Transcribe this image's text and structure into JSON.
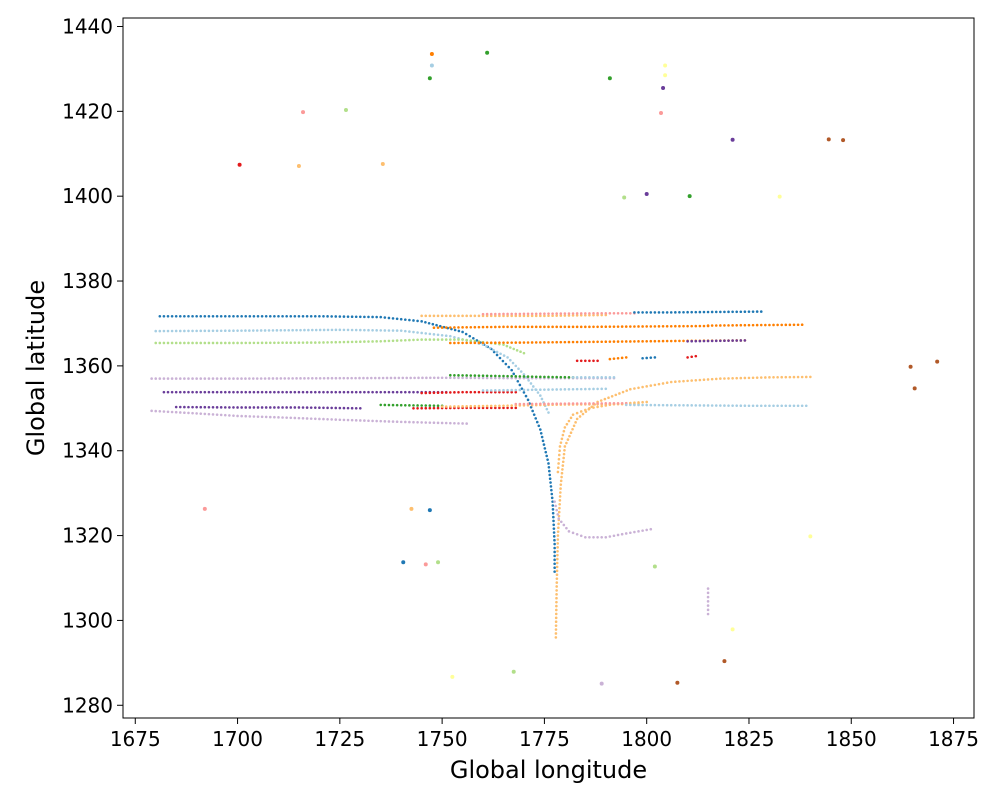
{
  "chart_data": {
    "type": "scatter",
    "title": "",
    "xlabel": "Global longitude",
    "ylabel": "Global latitude",
    "xlim": [
      1672,
      1880
    ],
    "ylim": [
      1277,
      1442
    ],
    "xticks": [
      1675,
      1700,
      1725,
      1750,
      1775,
      1800,
      1825,
      1850,
      1875
    ],
    "yticks": [
      1280,
      1300,
      1320,
      1340,
      1360,
      1380,
      1400,
      1420,
      1440
    ],
    "grid": false,
    "legend": "none",
    "palette": [
      "#a6cee3",
      "#1f78b4",
      "#b2df8a",
      "#33a02c",
      "#fb9a99",
      "#e31a1c",
      "#fdbf6f",
      "#ff7f00",
      "#cab2d6",
      "#6a3d9a",
      "#ffff99",
      "#b15928"
    ],
    "tracks": [
      {
        "color": "#1f78b4",
        "x": [
          1681,
          1700,
          1720,
          1735,
          1745,
          1755,
          1762,
          1767,
          1771,
          1774,
          1776,
          1777,
          1777.5,
          1777.5
        ],
        "y": [
          1371.7,
          1371.7,
          1371.7,
          1371.5,
          1370.5,
          1368,
          1364,
          1359,
          1352,
          1345,
          1337,
          1328,
          1318,
          1311.5
        ]
      },
      {
        "color": "#fdbf6f",
        "x": [
          1777.8,
          1778,
          1778.3,
          1779,
          1780,
          1783,
          1788,
          1796,
          1806,
          1818,
          1830,
          1840
        ],
        "y": [
          1296,
          1308,
          1320,
          1332,
          1341,
          1347.5,
          1351.5,
          1354.5,
          1356.2,
          1357,
          1357.3,
          1357.4
        ]
      },
      {
        "color": "#fdbf6f",
        "x": [
          1778.3,
          1778.8,
          1780,
          1782,
          1786,
          1792,
          1800
        ],
        "y": [
          1335,
          1341,
          1345.5,
          1348.5,
          1350,
          1351,
          1351.5
        ]
      },
      {
        "color": "#cab2d6",
        "x": [
          1777.5,
          1778.5,
          1781,
          1785,
          1790,
          1795,
          1801
        ],
        "y": [
          1328,
          1324,
          1321,
          1319.6,
          1319.6,
          1320.5,
          1321.5
        ]
      },
      {
        "color": "#cab2d6",
        "x": [
          1815,
          1815
        ],
        "y": [
          1301.5,
          1307.5
        ]
      },
      {
        "color": "#a6cee3",
        "x": [
          1680,
          1700,
          1725,
          1740,
          1752,
          1760,
          1766,
          1770,
          1774,
          1776
        ],
        "y": [
          1368.2,
          1368.3,
          1368.5,
          1368.3,
          1367,
          1365,
          1362,
          1358,
          1353,
          1349
        ]
      },
      {
        "color": "#b2df8a",
        "x": [
          1680,
          1700,
          1720,
          1735,
          1745,
          1755,
          1765,
          1770
        ],
        "y": [
          1365.4,
          1365.4,
          1365.5,
          1365.8,
          1366.2,
          1366.2,
          1365,
          1363
        ]
      },
      {
        "color": "#cab2d6",
        "x": [
          1679,
          1700,
          1725,
          1750,
          1770,
          1780,
          1792
        ],
        "y": [
          1357,
          1357,
          1357.1,
          1357.2,
          1357.1,
          1357.1,
          1357.1
        ]
      },
      {
        "color": "#6a3d9a",
        "x": [
          1682,
          1700,
          1720,
          1740,
          1751
        ],
        "y": [
          1353.8,
          1353.8,
          1353.8,
          1353.8,
          1353.8
        ]
      },
      {
        "color": "#6a3d9a",
        "x": [
          1685,
          1700,
          1715,
          1730
        ],
        "y": [
          1350.3,
          1350.2,
          1350.2,
          1350
        ]
      },
      {
        "color": "#cab2d6",
        "x": [
          1679,
          1690,
          1700,
          1712,
          1725,
          1740,
          1756
        ],
        "y": [
          1349.4,
          1348.8,
          1348.2,
          1347.8,
          1347.3,
          1346.8,
          1346.4
        ]
      },
      {
        "color": "#fdbf6f",
        "x": [
          1745,
          1760,
          1775,
          1790
        ],
        "y": [
          1371.8,
          1371.8,
          1371.8,
          1372
        ]
      },
      {
        "color": "#fb9a99",
        "x": [
          1760,
          1775,
          1790,
          1797
        ],
        "y": [
          1372.2,
          1372.3,
          1372.4,
          1372.4
        ]
      },
      {
        "color": "#1f78b4",
        "x": [
          1797,
          1805,
          1815,
          1828
        ],
        "y": [
          1372.6,
          1372.6,
          1372.7,
          1372.8
        ]
      },
      {
        "color": "#ff7f00",
        "x": [
          1748,
          1765,
          1785,
          1800,
          1815
        ],
        "y": [
          1369,
          1369.2,
          1369.2,
          1369.3,
          1369.4
        ]
      },
      {
        "color": "#ff7f00",
        "x": [
          1815,
          1825,
          1838
        ],
        "y": [
          1369.5,
          1369.6,
          1369.7
        ]
      },
      {
        "color": "#ff7f00",
        "x": [
          1752,
          1770,
          1790,
          1810,
          1824
        ],
        "y": [
          1365.4,
          1365.5,
          1365.7,
          1365.9,
          1366
        ]
      },
      {
        "color": "#6a3d9a",
        "x": [
          1810,
          1824
        ],
        "y": [
          1365.8,
          1366
        ]
      },
      {
        "color": "#e31a1c",
        "x": [
          1783,
          1788
        ],
        "y": [
          1361.2,
          1361.2
        ]
      },
      {
        "color": "#ff7f00",
        "x": [
          1791,
          1795
        ],
        "y": [
          1361.6,
          1362
        ]
      },
      {
        "color": "#1f78b4",
        "x": [
          1799,
          1802
        ],
        "y": [
          1361.8,
          1362
        ]
      },
      {
        "color": "#e31a1c",
        "x": [
          1810,
          1812
        ],
        "y": [
          1362,
          1362.3
        ]
      },
      {
        "color": "#33a02c",
        "x": [
          1752,
          1765,
          1775,
          1782
        ],
        "y": [
          1357.8,
          1357.6,
          1357.4,
          1357.3
        ]
      },
      {
        "color": "#a6cee3",
        "x": [
          1782,
          1792
        ],
        "y": [
          1357.3,
          1357.3
        ]
      },
      {
        "color": "#e31a1c",
        "x": [
          1745,
          1755,
          1768
        ],
        "y": [
          1353.6,
          1353.8,
          1353.8
        ]
      },
      {
        "color": "#a6cee3",
        "x": [
          1760,
          1775,
          1790
        ],
        "y": [
          1354.2,
          1354.4,
          1354.6
        ]
      },
      {
        "color": "#33a02c",
        "x": [
          1735,
          1742,
          1750
        ],
        "y": [
          1350.8,
          1350.7,
          1350.6
        ]
      },
      {
        "color": "#e31a1c",
        "x": [
          1743,
          1755,
          1768
        ],
        "y": [
          1350,
          1350.1,
          1350.1
        ]
      },
      {
        "color": "#fdbf6f",
        "x": [
          1750,
          1765,
          1780,
          1798
        ],
        "y": [
          1350.4,
          1350.6,
          1350.9,
          1351
        ]
      },
      {
        "color": "#fb9a99",
        "x": [
          1768,
          1780,
          1795
        ],
        "y": [
          1351,
          1351.1,
          1351.2
        ]
      },
      {
        "color": "#a6cee3",
        "x": [
          1795,
          1810,
          1825,
          1839
        ],
        "y": [
          1350.8,
          1350.7,
          1350.6,
          1350.6
        ]
      }
    ],
    "points": [
      {
        "x": 1747.5,
        "y": 1433.5,
        "color": "#ff7f00"
      },
      {
        "x": 1761,
        "y": 1433.8,
        "color": "#33a02c"
      },
      {
        "x": 1747.5,
        "y": 1430.8,
        "color": "#a6cee3"
      },
      {
        "x": 1747,
        "y": 1427.8,
        "color": "#33a02c"
      },
      {
        "x": 1791,
        "y": 1427.8,
        "color": "#33a02c"
      },
      {
        "x": 1804.5,
        "y": 1430.8,
        "color": "#ffff99"
      },
      {
        "x": 1804.5,
        "y": 1428.5,
        "color": "#ffff99"
      },
      {
        "x": 1804,
        "y": 1425.5,
        "color": "#6a3d9a"
      },
      {
        "x": 1716,
        "y": 1419.8,
        "color": "#fb9a99"
      },
      {
        "x": 1726.5,
        "y": 1420.3,
        "color": "#b2df8a"
      },
      {
        "x": 1803.5,
        "y": 1419.6,
        "color": "#fb9a99"
      },
      {
        "x": 1821,
        "y": 1413.3,
        "color": "#6a3d9a"
      },
      {
        "x": 1844.5,
        "y": 1413.4,
        "color": "#b15928"
      },
      {
        "x": 1848,
        "y": 1413.2,
        "color": "#b15928"
      },
      {
        "x": 1700.5,
        "y": 1407.4,
        "color": "#e31a1c"
      },
      {
        "x": 1715,
        "y": 1407.1,
        "color": "#fdbf6f"
      },
      {
        "x": 1735.5,
        "y": 1407.6,
        "color": "#fdbf6f"
      },
      {
        "x": 1794.5,
        "y": 1399.7,
        "color": "#b2df8a"
      },
      {
        "x": 1800,
        "y": 1400.5,
        "color": "#6a3d9a"
      },
      {
        "x": 1810.5,
        "y": 1400,
        "color": "#33a02c"
      },
      {
        "x": 1832.5,
        "y": 1399.9,
        "color": "#ffff99"
      },
      {
        "x": 1864.5,
        "y": 1359.8,
        "color": "#b15928"
      },
      {
        "x": 1871,
        "y": 1361,
        "color": "#b15928"
      },
      {
        "x": 1865.5,
        "y": 1354.7,
        "color": "#b15928"
      },
      {
        "x": 1692,
        "y": 1326.3,
        "color": "#fb9a99"
      },
      {
        "x": 1742.5,
        "y": 1326.3,
        "color": "#fdbf6f"
      },
      {
        "x": 1747,
        "y": 1326,
        "color": "#1f78b4"
      },
      {
        "x": 1840,
        "y": 1319.8,
        "color": "#ffff99"
      },
      {
        "x": 1740.5,
        "y": 1313.7,
        "color": "#1f78b4"
      },
      {
        "x": 1746,
        "y": 1313.2,
        "color": "#fb9a99"
      },
      {
        "x": 1749,
        "y": 1313.7,
        "color": "#b2df8a"
      },
      {
        "x": 1802,
        "y": 1312.7,
        "color": "#b2df8a"
      },
      {
        "x": 1821,
        "y": 1297.9,
        "color": "#ffff99"
      },
      {
        "x": 1819,
        "y": 1290.4,
        "color": "#b15928"
      },
      {
        "x": 1752.5,
        "y": 1286.7,
        "color": "#ffff99"
      },
      {
        "x": 1767.5,
        "y": 1287.9,
        "color": "#b2df8a"
      },
      {
        "x": 1789,
        "y": 1285.1,
        "color": "#cab2d6"
      },
      {
        "x": 1807.5,
        "y": 1285.3,
        "color": "#b15928"
      }
    ]
  }
}
